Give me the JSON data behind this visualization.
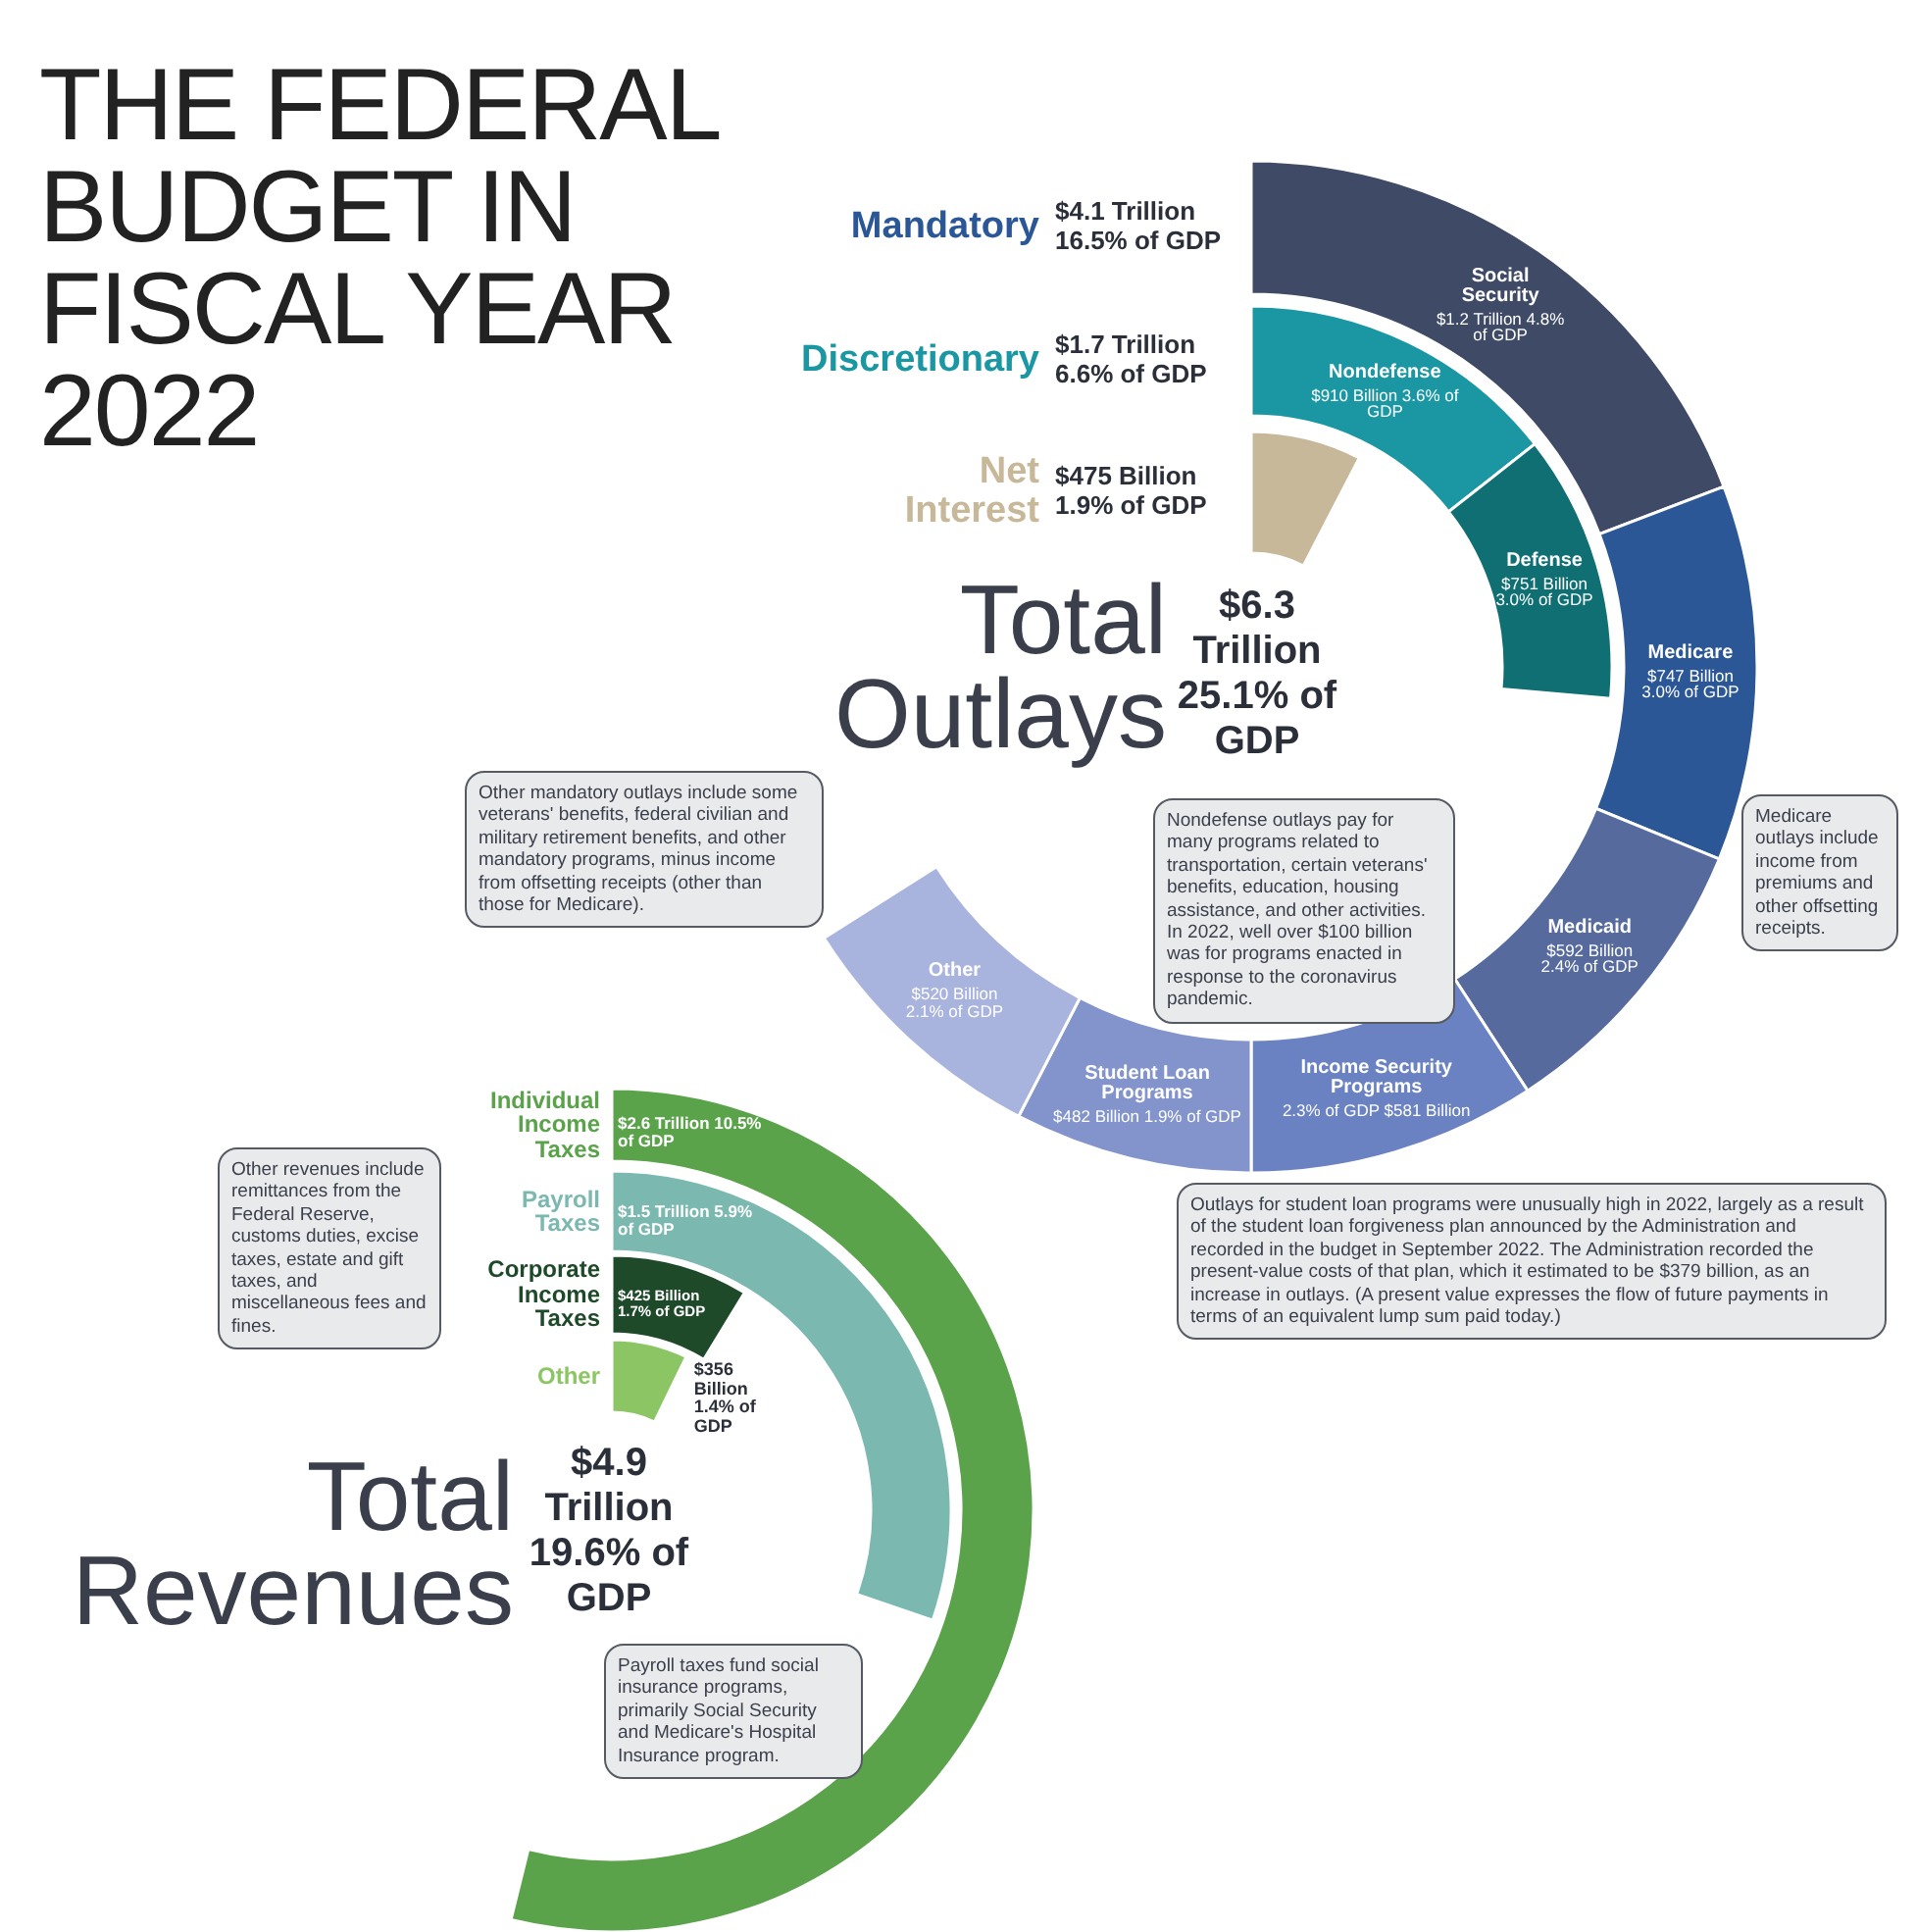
{
  "chart_data": [
    {
      "type": "other",
      "title": "THE FEDERAL BUDGET IN FISCAL YEAR 2022",
      "categories": [
        "Social Security",
        "Medicare",
        "Medicaid",
        "Income Security Programs",
        "Student Loan Programs",
        "Other",
        "Nondefense",
        "Defense",
        "Net Interest"
      ],
      "series": [
        {
          "name": "Mandatory",
          "color": "#2b5797",
          "values": [
            4.8,
            3.0,
            2.4,
            2.3,
            1.9,
            2.1,
            null,
            null,
            null
          ],
          "colors": [
            "#3f4a66",
            "#2b5797",
            "#566a9e",
            "#6a82c2",
            "#8394cc",
            "#a9b4de",
            null,
            null,
            null
          ],
          "value_labels": [
            "$1.2 Trillion 4.8% of GDP",
            "$747 Billion 3.0% of GDP",
            "$592 Billion 2.4% of GDP",
            "2.3% of GDP $581 Billion",
            "$482 Billion 1.9% of GDP",
            "$520 Billion 2.1% of GDP",
            null,
            null,
            null
          ]
        },
        {
          "name": "Discretionary",
          "color": "#1a97a3",
          "values": [
            null,
            null,
            null,
            null,
            null,
            null,
            3.6,
            3.0,
            null
          ],
          "colors": [
            null,
            null,
            null,
            null,
            null,
            null,
            "#1a97a3",
            "#0f6f73",
            null
          ],
          "value_labels": [
            null,
            null,
            null,
            null,
            null,
            null,
            "$910 Billion 3.6% of GDP",
            "$751 Billion 3.0% of GDP",
            null
          ]
        },
        {
          "color": "#c8b89a",
          "values": [
            null,
            null,
            null,
            null,
            null,
            null,
            null,
            null,
            1.9
          ],
          "colors": [
            null,
            null,
            null,
            null,
            null,
            null,
            null,
            null,
            "#c8b89a"
          ],
          "value_labels": [
            null,
            null,
            null,
            null,
            null,
            null,
            null,
            null,
            "$475 Billion 1.9% of GDP"
          ]
        }
      ],
      "annotations": [
        "$4.1 Trillion 16.5% of GDP",
        "$1.7 Trillion 6.6% of GDP",
        "Total Outlays",
        "$6.3 Trillion 25.1% of GDP",
        "Other mandatory outlays include some veterans' benefits, federal civilian and military retirement benefits, and other mandatory programs, minus income from offsetting receipts (other than those for Medicare).",
        "Nondefense outlays pay for many programs related to transportation, certain veterans' benefits, education, housing assistance, and other activities. In 2022, well over $100 billion was for programs enacted in response to the coronavirus pandemic.",
        "Medicare outlays include income from premiums and other offsetting receipts.",
        "Outlays for student loan programs were unusually high in 2022, largely as a result of the student loan forgiveness plan announced by the Administration and recorded in the budget in September 2022. The Administration recorded the present-value costs of that plan, which it estimated to be $379 billion, as an increase in outlays. (A present value expresses the flow of future payments in terms of an equivalent lump sum paid today.)"
      ]
    },
    {
      "type": "other",
      "categories": [
        "Individual Income Taxes",
        "Payroll Taxes",
        "Corporate Income Taxes",
        "Other"
      ],
      "series": [
        {
          "values": [
            10.5,
            5.9,
            1.7,
            1.4
          ],
          "colors": [
            "#5aa34b",
            "#7ab8b0",
            "#1e4a2a",
            "#8cc664"
          ],
          "value_labels": [
            "$2.6 Trillion 10.5% of GDP",
            "$1.5 Trillion 5.9% of GDP",
            "$425 Billion 1.7% of GDP",
            "$356 Billion 1.4% of GDP"
          ]
        }
      ],
      "annotations": [
        "Total Revenues",
        "$4.9 Trillion 19.6% of GDP",
        "Other revenues include remittances from the Federal Reserve, customs duties, excise taxes, estate and gift taxes, and miscellaneous fees and fines.",
        "Payroll taxes fund social insurance programs, primarily Social Security and Medicare's Hospital Insurance program."
      ]
    }
  ]
}
